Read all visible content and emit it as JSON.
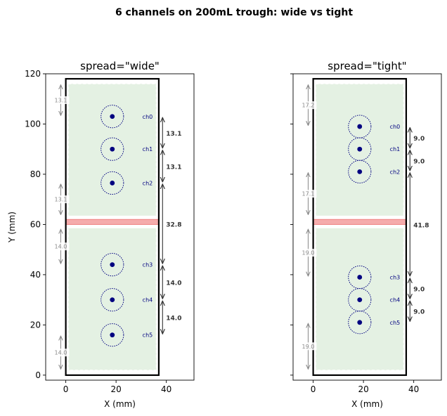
{
  "figure_title": "6 channels on 200mL trough: wide vs tight",
  "colors": {
    "trough_fill": "#e4f1e3",
    "trough_border": "#000000",
    "divider": "#f08080",
    "well_dot": "#000080",
    "channel_label": "#000080",
    "dim_dark": "#333333",
    "dim_light": "#888888"
  },
  "chart_data": [
    {
      "type": "scatter",
      "title": "spread=\"wide\"",
      "xlabel": "X (mm)",
      "ylabel": "Y (mm)",
      "xlim": [
        -8,
        51
      ],
      "ylim": [
        -2,
        120
      ],
      "xticks": [
        "0",
        "20",
        "40"
      ],
      "yticks": [
        "0",
        "20",
        "40",
        "60",
        "80",
        "100",
        "120"
      ],
      "trough": {
        "x": [
          0,
          37
        ],
        "y": [
          0,
          118
        ]
      },
      "inner_region": {
        "x": [
          1,
          36
        ],
        "y": [
          2,
          116
        ]
      },
      "divider_y": 61,
      "channel_x": 18.5,
      "channel_radius": 4.5,
      "channels": [
        {
          "label": "ch0",
          "y": 103
        },
        {
          "label": "ch1",
          "y": 90
        },
        {
          "label": "ch2",
          "y": 76.5
        },
        {
          "label": "ch3",
          "y": 44
        },
        {
          "label": "ch4",
          "y": 30
        },
        {
          "label": "ch5",
          "y": 16
        }
      ],
      "spacings": [
        {
          "label": "13.1",
          "y1": 103,
          "y2": 90
        },
        {
          "label": "13.1",
          "y1": 90,
          "y2": 76.5
        },
        {
          "label": "32.8",
          "y1": 76.5,
          "y2": 44
        },
        {
          "label": "14.0",
          "y1": 44,
          "y2": 30
        },
        {
          "label": "14.0",
          "y1": 30,
          "y2": 16
        }
      ],
      "edge_gaps": [
        {
          "label": "13.1",
          "y1": 116,
          "y2": 103
        },
        {
          "label": "13.1",
          "y1": 76.5,
          "y2": 63.5
        },
        {
          "label": "14.0",
          "y1": 58.5,
          "y2": 44
        },
        {
          "label": "14.0",
          "y1": 16,
          "y2": 2
        }
      ]
    },
    {
      "type": "scatter",
      "title": "spread=\"tight\"",
      "xlabel": "X (mm)",
      "ylabel": "",
      "xlim": [
        -8,
        51
      ],
      "ylim": [
        -2,
        120
      ],
      "xticks": [
        "0",
        "20",
        "40"
      ],
      "yticks": [],
      "trough": {
        "x": [
          0,
          37
        ],
        "y": [
          0,
          118
        ]
      },
      "inner_region": {
        "x": [
          1,
          36
        ],
        "y": [
          2,
          116
        ]
      },
      "divider_y": 61,
      "channel_x": 18.5,
      "channel_radius": 4.5,
      "channels": [
        {
          "label": "ch0",
          "y": 99
        },
        {
          "label": "ch1",
          "y": 90
        },
        {
          "label": "ch2",
          "y": 81
        },
        {
          "label": "ch3",
          "y": 39
        },
        {
          "label": "ch4",
          "y": 30
        },
        {
          "label": "ch5",
          "y": 21
        }
      ],
      "spacings": [
        {
          "label": "9.0",
          "y1": 99,
          "y2": 90
        },
        {
          "label": "9.0",
          "y1": 90,
          "y2": 81
        },
        {
          "label": "41.8",
          "y1": 81,
          "y2": 39
        },
        {
          "label": "9.0",
          "y1": 39,
          "y2": 30
        },
        {
          "label": "9.0",
          "y1": 30,
          "y2": 21
        }
      ],
      "edge_gaps": [
        {
          "label": "17.2",
          "y1": 116,
          "y2": 99
        },
        {
          "label": "17.1",
          "y1": 81,
          "y2": 63.5
        },
        {
          "label": "19.0",
          "y1": 58.5,
          "y2": 39
        },
        {
          "label": "19.0",
          "y1": 21,
          "y2": 2
        }
      ]
    }
  ]
}
